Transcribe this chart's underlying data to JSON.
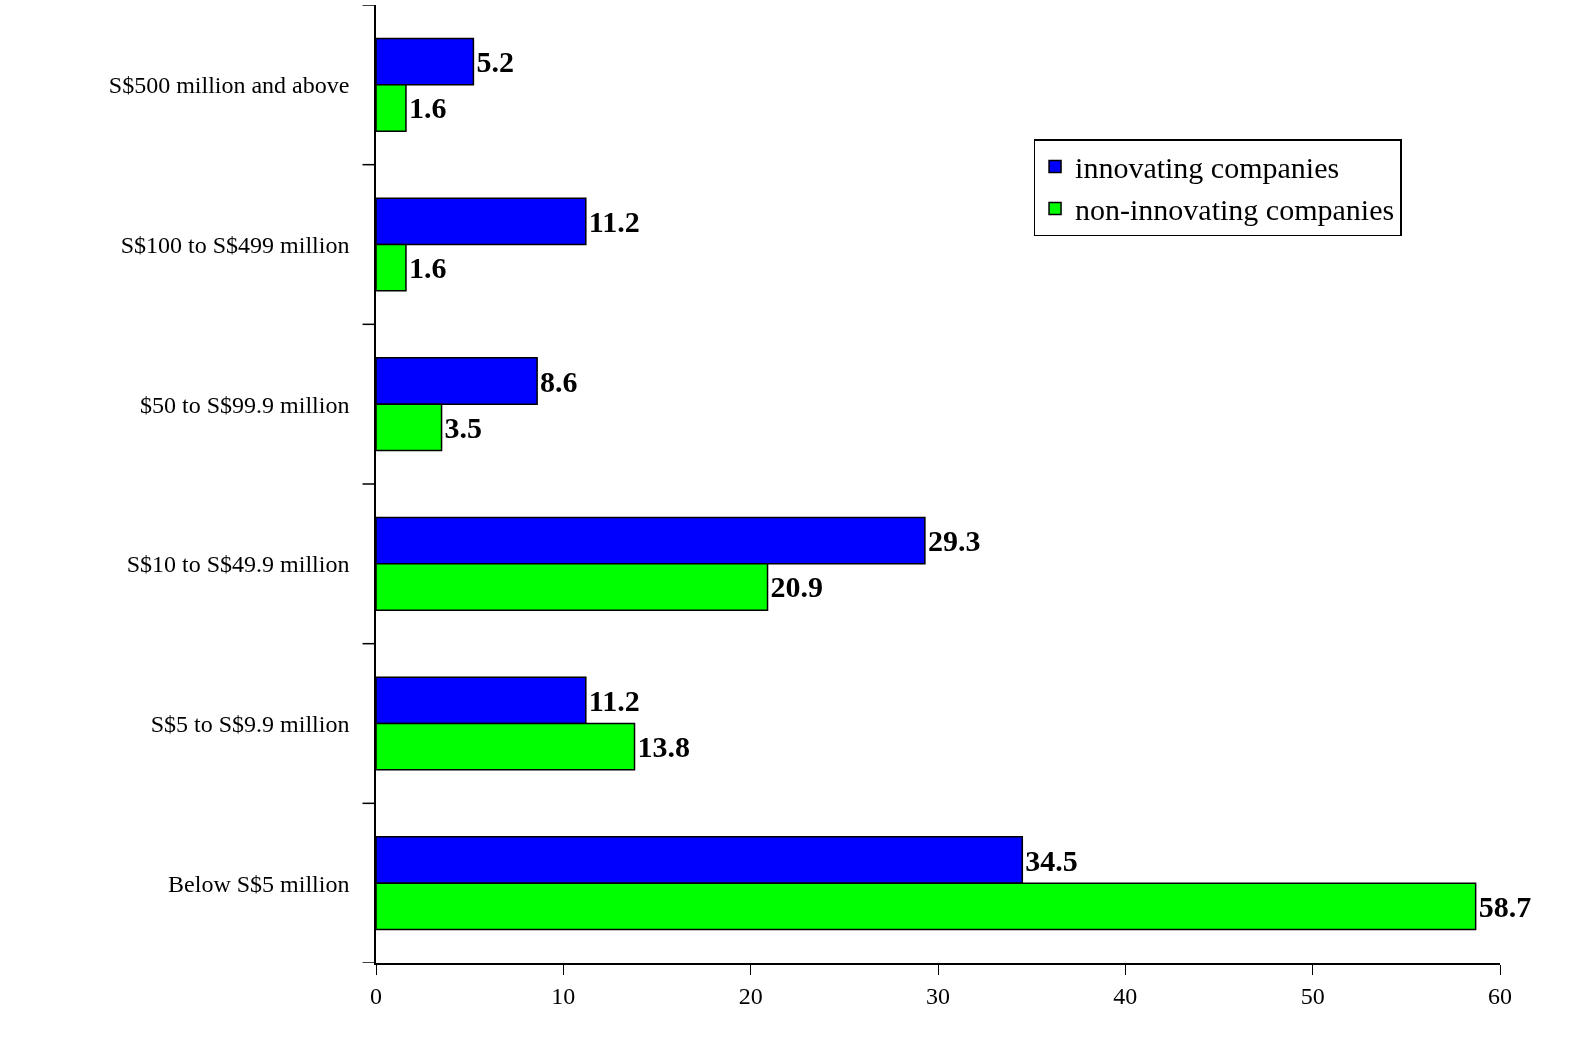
{
  "chart_data": {
    "type": "bar",
    "orientation": "horizontal",
    "categories": [
      "S$500 million and above",
      "S$100 to S$499 million",
      "$50 to S$99.9 million",
      "S$10 to S$49.9 million",
      "S$5 to S$9.9 million",
      "Below S$5 million"
    ],
    "series": [
      {
        "name": "innovating companies",
        "color": "#0000ff",
        "values": [
          5.2,
          11.2,
          8.6,
          29.3,
          11.2,
          34.5
        ]
      },
      {
        "name": "non-innovating companies",
        "color": "#00ff00",
        "values": [
          1.6,
          1.6,
          3.5,
          20.9,
          13.8,
          58.7
        ]
      }
    ],
    "xlim": [
      0,
      60
    ],
    "xticks": [
      0,
      10,
      20,
      30,
      40,
      50,
      60
    ],
    "grid": false,
    "legend": "top right",
    "data_labels": true
  }
}
